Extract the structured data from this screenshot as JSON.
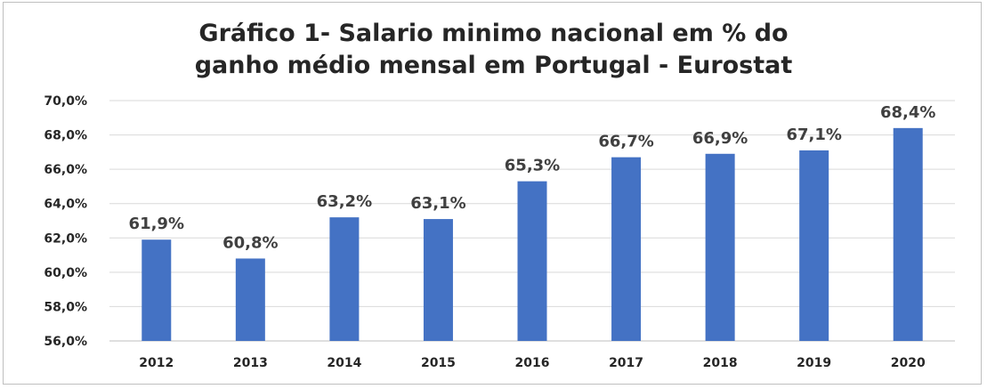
{
  "chart_data": {
    "type": "bar",
    "title_lines": [
      "Gráfico 1- Salario minimo nacional em %  do",
      "ganho médio mensal em Portugal - Eurostat"
    ],
    "categories": [
      "2012",
      "2013",
      "2014",
      "2015",
      "2016",
      "2017",
      "2018",
      "2019",
      "2020"
    ],
    "values": [
      61.9,
      60.8,
      63.2,
      63.1,
      65.3,
      66.7,
      66.9,
      67.1,
      68.4
    ],
    "data_labels": [
      "61,9%",
      "60,8%",
      "63,2%",
      "63,1%",
      "65,3%",
      "66,7%",
      "66,9%",
      "67,1%",
      "68,4%"
    ],
    "y_ticks": [
      56,
      58,
      60,
      62,
      64,
      66,
      68,
      70
    ],
    "y_tick_labels": [
      "56,0%",
      "58,0%",
      "60,0%",
      "62,0%",
      "64,0%",
      "66,0%",
      "68,0%",
      "70,0%"
    ],
    "ylim": [
      56,
      70
    ],
    "grid": true,
    "legend": "none",
    "bar_color": "#4472c4",
    "grid_color": "#d9d9d9"
  }
}
